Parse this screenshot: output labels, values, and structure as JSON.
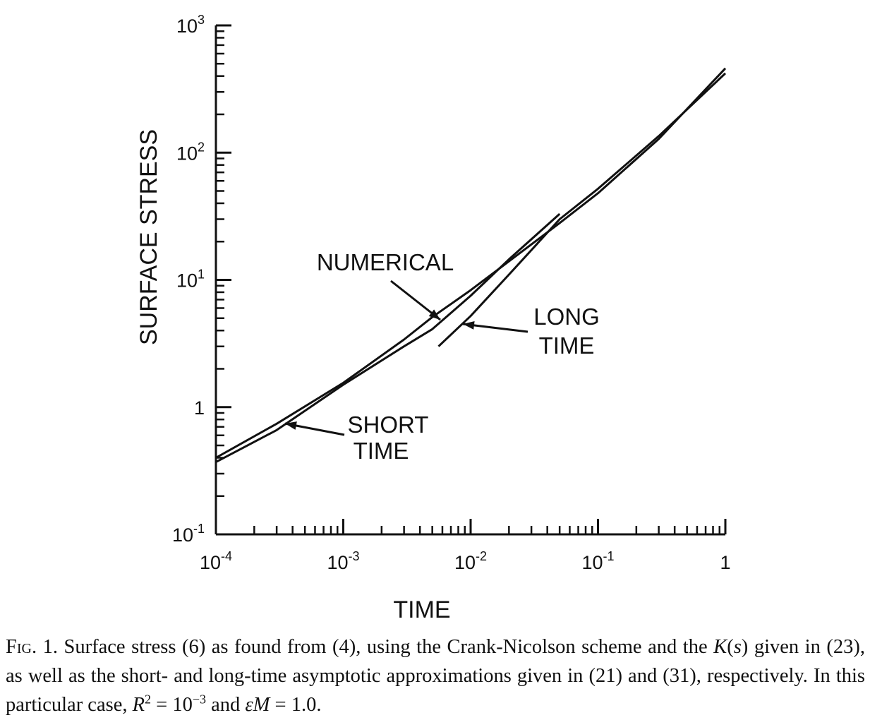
{
  "chart_data": {
    "type": "line",
    "title": "",
    "xlabel": "TIME",
    "ylabel": "SURFACE STRESS",
    "xscale": "log",
    "yscale": "log",
    "xlim": [
      0.0001,
      1
    ],
    "ylim": [
      0.1,
      1000
    ],
    "x_ticks": [
      {
        "base": "10",
        "exp": "-4",
        "value": 0.0001
      },
      {
        "base": "10",
        "exp": "-3",
        "value": 0.001
      },
      {
        "base": "10",
        "exp": "-2",
        "value": 0.01
      },
      {
        "base": "10",
        "exp": "-1",
        "value": 0.1
      },
      {
        "base": "1",
        "exp": "",
        "value": 1
      }
    ],
    "y_ticks": [
      {
        "base": "10",
        "exp": "-1",
        "value": 0.1
      },
      {
        "base": "1",
        "exp": "",
        "value": 1
      },
      {
        "base": "10",
        "exp": "1",
        "value": 10
      },
      {
        "base": "10",
        "exp": "2",
        "value": 100
      },
      {
        "base": "10",
        "exp": "3",
        "value": 1000
      }
    ],
    "grid": false,
    "series": [
      {
        "name": "NUMERICAL",
        "x": [
          0.0001,
          0.0003,
          0.001,
          0.003,
          0.005,
          0.01,
          0.02,
          0.05,
          0.1,
          0.3,
          1
        ],
        "y": [
          0.4,
          0.74,
          1.55,
          3.4,
          5.1,
          8.3,
          14,
          28,
          48,
          128,
          460
        ]
      },
      {
        "name": "SHORT TIME",
        "x": [
          0.0001,
          0.0003,
          0.001,
          0.003,
          0.005,
          0.01,
          0.02,
          0.05
        ],
        "y": [
          0.37,
          0.66,
          1.5,
          3.0,
          4.1,
          7.5,
          14.5,
          33
        ]
      },
      {
        "name": "LONG TIME",
        "x": [
          0.0056,
          0.01,
          0.02,
          0.05,
          0.1,
          0.3,
          1
        ],
        "y": [
          3.0,
          5.2,
          11,
          30,
          52,
          135,
          420
        ]
      }
    ],
    "annotations": [
      {
        "text": "NUMERICAL"
      },
      {
        "text": "LONG",
        "text2": "TIME"
      },
      {
        "text": "SHORT",
        "text2": "TIME"
      }
    ]
  },
  "caption": {
    "label": "Fig. 1.",
    "part1": " Surface stress (6) as found from (4), using the Crank-Nicolson scheme and the ",
    "k": "K",
    "s": "s",
    "part2": " given in (23), as well as the short- and long-time asymptotic approximations given in (21) and (31), respectively. In this particular case, ",
    "r": "R",
    "r_exp": "2",
    "eq1": " = 10",
    "eq1_exp": "−3",
    "and": " and ",
    "eps": "εM",
    "eq2": " = 1.0."
  }
}
